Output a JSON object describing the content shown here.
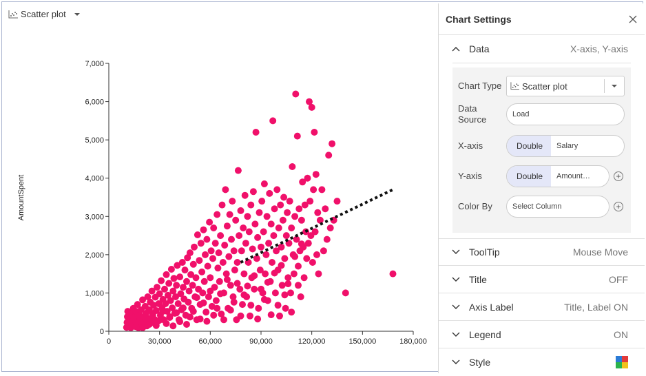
{
  "chart_type_selector": {
    "label": "Scatter plot"
  },
  "panel": {
    "title": "Chart Settings",
    "data_section": {
      "label": "Data",
      "summary": "X-axis, Y-axis",
      "chart_type_label": "Chart Type",
      "chart_type_value": "Scatter plot",
      "data_source_label": "Data Source",
      "data_source_value": "Load",
      "x_axis_label": "X-axis",
      "x_axis_type": "Double",
      "x_axis_column": "Salary",
      "y_axis_label": "Y-axis",
      "y_axis_type": "Double",
      "y_axis_column": "Amount…",
      "color_by_label": "Color By",
      "color_by_value": "Select Column"
    },
    "sections": [
      {
        "label": "ToolTip",
        "value": "Mouse Move"
      },
      {
        "label": "Title",
        "value": "OFF"
      },
      {
        "label": "Axis Label",
        "value": "Title, Label ON"
      },
      {
        "label": "Legend",
        "value": "ON"
      },
      {
        "label": "Style",
        "value": ""
      }
    ],
    "style_swatch_colors": [
      "#2b7bd6",
      "#e23a3a",
      "#2bb24c",
      "#f2c11c"
    ]
  },
  "chart_data": {
    "type": "scatter",
    "title": "",
    "xlabel": "",
    "ylabel": "AmountSpent",
    "xlim": [
      0,
      180000
    ],
    "ylim": [
      0,
      7000
    ],
    "x_ticks": [
      0,
      30000,
      60000,
      90000,
      120000,
      150000,
      180000
    ],
    "x_tick_labels": [
      "0",
      "30,000",
      "60,000",
      "90,000",
      "120,000",
      "150,000",
      "180,000"
    ],
    "y_ticks": [
      0,
      1000,
      2000,
      3000,
      4000,
      5000,
      6000,
      7000
    ],
    "y_tick_labels": [
      "0",
      "1,000",
      "2,000",
      "3,000",
      "4,000",
      "5,000",
      "6,000",
      "7,000"
    ],
    "point_color": "#f0106a",
    "trendline": {
      "style": "dotted",
      "color": "#111111",
      "x": [
        78000,
        168000
      ],
      "y": [
        1800,
        3700
      ]
    },
    "points": [
      [
        10500,
        100
      ],
      [
        10800,
        230
      ],
      [
        11000,
        380
      ],
      [
        11200,
        520
      ],
      [
        12000,
        180
      ],
      [
        12500,
        310
      ],
      [
        13000,
        90
      ],
      [
        13400,
        450
      ],
      [
        14000,
        260
      ],
      [
        14500,
        600
      ],
      [
        15000,
        150
      ],
      [
        15500,
        380
      ],
      [
        16000,
        520
      ],
      [
        16500,
        230
      ],
      [
        17000,
        700
      ],
      [
        17500,
        90
      ],
      [
        18000,
        420
      ],
      [
        18500,
        310
      ],
      [
        19000,
        560
      ],
      [
        19500,
        180
      ],
      [
        20000,
        820
      ],
      [
        20500,
        380
      ],
      [
        21000,
        240
      ],
      [
        21500,
        650
      ],
      [
        22000,
        470
      ],
      [
        22500,
        140
      ],
      [
        23000,
        900
      ],
      [
        23500,
        330
      ],
      [
        24000,
        560
      ],
      [
        24500,
        760
      ],
      [
        25000,
        220
      ],
      [
        25500,
        1050
      ],
      [
        26000,
        460
      ],
      [
        26500,
        680
      ],
      [
        27000,
        310
      ],
      [
        27500,
        890
      ],
      [
        28000,
        540
      ],
      [
        28500,
        1150
      ],
      [
        29000,
        260
      ],
      [
        29500,
        720
      ],
      [
        30000,
        980
      ],
      [
        30500,
        420
      ],
      [
        31000,
        1320
      ],
      [
        31500,
        610
      ],
      [
        32000,
        830
      ],
      [
        32500,
        300
      ],
      [
        33000,
        1100
      ],
      [
        33500,
        720
      ],
      [
        34000,
        1480
      ],
      [
        34500,
        520
      ],
      [
        35000,
        940
      ],
      [
        35500,
        1250
      ],
      [
        36000,
        380
      ],
      [
        36500,
        800
      ],
      [
        37000,
        1620
      ],
      [
        37500,
        610
      ],
      [
        38000,
        1050
      ],
      [
        38500,
        1380
      ],
      [
        39000,
        470
      ],
      [
        39500,
        900
      ],
      [
        40000,
        1200
      ],
      [
        40500,
        1720
      ],
      [
        41000,
        720
      ],
      [
        41500,
        300
      ],
      [
        42000,
        1420
      ],
      [
        42500,
        980
      ],
      [
        43000,
        560
      ],
      [
        43500,
        1800
      ],
      [
        44000,
        1150
      ],
      [
        44500,
        840
      ],
      [
        45000,
        1600
      ],
      [
        45500,
        420
      ],
      [
        46000,
        1300
      ],
      [
        46500,
        1920
      ],
      [
        47000,
        760
      ],
      [
        47500,
        1050
      ],
      [
        48000,
        2050
      ],
      [
        48500,
        1480
      ],
      [
        49000,
        600
      ],
      [
        49500,
        1200
      ],
      [
        50000,
        1750
      ],
      [
        50500,
        2200
      ],
      [
        51000,
        900
      ],
      [
        51500,
        1400
      ],
      [
        52000,
        300
      ],
      [
        52500,
        2520
      ],
      [
        53000,
        1100
      ],
      [
        53500,
        1850
      ],
      [
        54000,
        700
      ],
      [
        54500,
        2300
      ],
      [
        55000,
        1550
      ],
      [
        55500,
        1000
      ],
      [
        56000,
        2650
      ],
      [
        56500,
        1300
      ],
      [
        57000,
        2000
      ],
      [
        57500,
        500
      ],
      [
        58000,
        2400
      ],
      [
        58500,
        1700
      ],
      [
        59000,
        900
      ],
      [
        59500,
        2850
      ],
      [
        60000,
        1400
      ],
      [
        60500,
        2100
      ],
      [
        61000,
        650
      ],
      [
        61500,
        1900
      ],
      [
        62000,
        2700
      ],
      [
        62500,
        1150
      ],
      [
        63000,
        2300
      ],
      [
        63500,
        800
      ],
      [
        64000,
        3050
      ],
      [
        64500,
        1650
      ],
      [
        65000,
        2050
      ],
      [
        65500,
        1300
      ],
      [
        66000,
        2500
      ],
      [
        66500,
        450
      ],
      [
        67000,
        3300
      ],
      [
        67500,
        1800
      ],
      [
        68000,
        1000
      ],
      [
        68500,
        2250
      ],
      [
        69000,
        3700
      ],
      [
        69500,
        1500
      ],
      [
        70000,
        2750
      ],
      [
        70500,
        600
      ],
      [
        71000,
        1950
      ],
      [
        71500,
        3050
      ],
      [
        72000,
        1200
      ],
      [
        72500,
        2400
      ],
      [
        73000,
        3400
      ],
      [
        73500,
        900
      ],
      [
        74000,
        2100
      ],
      [
        74500,
        1600
      ],
      [
        75000,
        2900
      ],
      [
        75500,
        300
      ],
      [
        76000,
        1800
      ],
      [
        76500,
        4200
      ],
      [
        77000,
        2500
      ],
      [
        77500,
        1100
      ],
      [
        78000,
        3150
      ],
      [
        78500,
        2100
      ],
      [
        79000,
        700
      ],
      [
        79500,
        2700
      ],
      [
        80000,
        1500
      ],
      [
        80500,
        3550
      ],
      [
        81000,
        2300
      ],
      [
        81500,
        900
      ],
      [
        82000,
        3000
      ],
      [
        82500,
        1800
      ],
      [
        83000,
        2600
      ],
      [
        83500,
        400
      ],
      [
        84000,
        3300
      ],
      [
        84500,
        1400
      ],
      [
        85000,
        2150
      ],
      [
        85500,
        3650
      ],
      [
        86000,
        1100
      ],
      [
        86500,
        2800
      ],
      [
        87000,
        5200
      ],
      [
        87500,
        1900
      ],
      [
        88000,
        2450
      ],
      [
        88500,
        600
      ],
      [
        89000,
        3100
      ],
      [
        89500,
        1600
      ],
      [
        90000,
        2200
      ],
      [
        90500,
        3400
      ],
      [
        91000,
        1000
      ],
      [
        91500,
        2600
      ],
      [
        92000,
        3850
      ],
      [
        92500,
        1500
      ],
      [
        93000,
        2000
      ],
      [
        93500,
        3000
      ],
      [
        94000,
        800
      ],
      [
        94500,
        2300
      ],
      [
        95000,
        3600
      ],
      [
        95500,
        1300
      ],
      [
        96000,
        2800
      ],
      [
        96500,
        1800
      ],
      [
        97000,
        5500
      ],
      [
        97500,
        2500
      ],
      [
        98000,
        3200
      ],
      [
        98500,
        1000
      ],
      [
        99000,
        2100
      ],
      [
        99500,
        3700
      ],
      [
        100000,
        1600
      ],
      [
        100500,
        2700
      ],
      [
        101000,
        400
      ],
      [
        101500,
        3300
      ],
      [
        102000,
        2200
      ],
      [
        102500,
        1200
      ],
      [
        103000,
        2900
      ],
      [
        103500,
        3500
      ],
      [
        104000,
        1900
      ],
      [
        104500,
        600
      ],
      [
        105000,
        2500
      ],
      [
        105500,
        3100
      ],
      [
        106000,
        1400
      ],
      [
        106500,
        2300
      ],
      [
        107000,
        3400
      ],
      [
        107500,
        1000
      ],
      [
        108000,
        2700
      ],
      [
        108500,
        4300
      ],
      [
        109000,
        2000
      ],
      [
        109500,
        1500
      ],
      [
        110000,
        3000
      ],
      [
        110500,
        6200
      ],
      [
        111000,
        2400
      ],
      [
        111500,
        5100
      ],
      [
        112000,
        1700
      ],
      [
        112500,
        3200
      ],
      [
        113000,
        2100
      ],
      [
        113500,
        900
      ],
      [
        114000,
        2900
      ],
      [
        114500,
        3900
      ],
      [
        115000,
        2200
      ],
      [
        115500,
        1400
      ],
      [
        116000,
        3300
      ],
      [
        116500,
        2600
      ],
      [
        117000,
        1900
      ],
      [
        117500,
        4000
      ],
      [
        118000,
        2300
      ],
      [
        118500,
        6000
      ],
      [
        119000,
        3400
      ],
      [
        119500,
        2500
      ],
      [
        120000,
        5850
      ],
      [
        120500,
        1800
      ],
      [
        121000,
        3700
      ],
      [
        121500,
        5200
      ],
      [
        122000,
        2600
      ],
      [
        122500,
        4100
      ],
      [
        123000,
        2000
      ],
      [
        123500,
        3100
      ],
      [
        124000,
        1500
      ],
      [
        125000,
        2900
      ],
      [
        126000,
        3700
      ],
      [
        127000,
        2100
      ],
      [
        128000,
        3200
      ],
      [
        129000,
        2400
      ],
      [
        130000,
        4600
      ],
      [
        131000,
        2700
      ],
      [
        132000,
        4900
      ],
      [
        133000,
        2900
      ],
      [
        135000,
        3400
      ],
      [
        140000,
        1000
      ],
      [
        168000,
        1500
      ],
      [
        16000,
        120
      ],
      [
        18000,
        260
      ],
      [
        20000,
        90
      ],
      [
        22000,
        330
      ],
      [
        24000,
        180
      ],
      [
        26000,
        420
      ],
      [
        28000,
        150
      ],
      [
        30000,
        290
      ],
      [
        32000,
        520
      ],
      [
        34000,
        200
      ],
      [
        36000,
        360
      ],
      [
        38000,
        140
      ],
      [
        40000,
        480
      ],
      [
        42000,
        250
      ],
      [
        44000,
        610
      ],
      [
        46000,
        180
      ],
      [
        48000,
        370
      ],
      [
        50000,
        520
      ],
      [
        52000,
        880
      ],
      [
        54000,
        320
      ],
      [
        56000,
        740
      ],
      [
        58000,
        260
      ],
      [
        60000,
        1050
      ],
      [
        62000,
        420
      ],
      [
        64000,
        600
      ],
      [
        66000,
        980
      ],
      [
        68000,
        300
      ],
      [
        70000,
        1350
      ],
      [
        72000,
        550
      ],
      [
        74000,
        760
      ],
      [
        76000,
        1250
      ],
      [
        78000,
        400
      ],
      [
        80000,
        950
      ],
      [
        82000,
        1180
      ],
      [
        84000,
        680
      ],
      [
        86000,
        1450
      ],
      [
        88000,
        320
      ],
      [
        90000,
        1100
      ],
      [
        92000,
        830
      ],
      [
        94000,
        1280
      ],
      [
        96000,
        430
      ],
      [
        98000,
        1520
      ],
      [
        100000,
        680
      ],
      [
        102000,
        1720
      ],
      [
        104000,
        950
      ],
      [
        106000,
        1240
      ],
      [
        108000,
        500
      ],
      [
        110000,
        1950
      ],
      [
        112000,
        1200
      ],
      [
        114000,
        2280
      ]
    ]
  }
}
